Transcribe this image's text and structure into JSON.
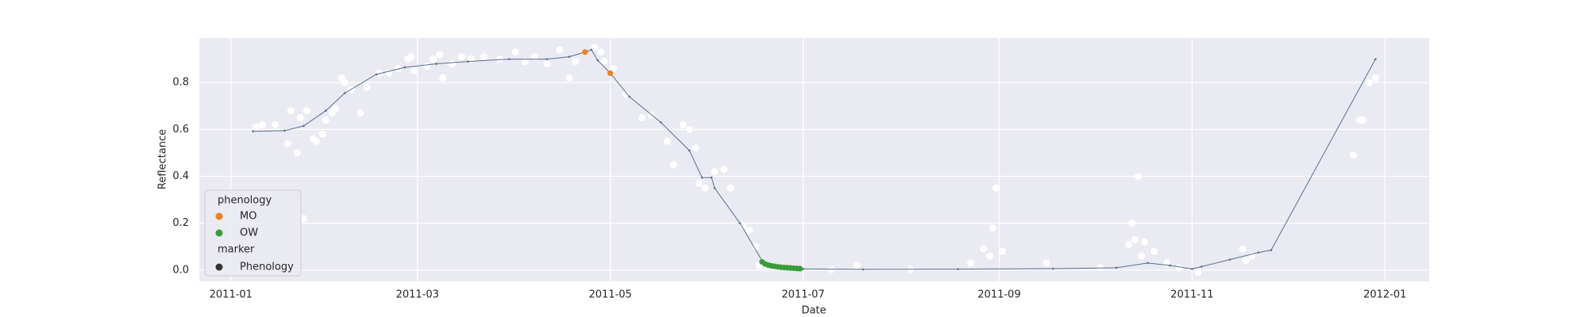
{
  "chart_data": {
    "type": "line",
    "xlabel": "Date",
    "ylabel": "Reflectance",
    "xlim": [
      "2010-12-22",
      "2012-01-15"
    ],
    "xticks": [
      "2011-01",
      "2011-03",
      "2011-05",
      "2011-07",
      "2011-09",
      "2011-11",
      "2012-01"
    ],
    "ylim": [
      -0.048,
      0.99
    ],
    "yticks": [
      {
        "value": 0,
        "label": "0.0"
      },
      0.2,
      0.4,
      0.6,
      0.8
    ],
    "grid": true,
    "line": {
      "color": "#56708f",
      "x": [
        "2011-01-08",
        "2011-01-18",
        "2011-01-24",
        "2011-01-31",
        "2011-02-06",
        "2011-02-16",
        "2011-02-25",
        "2011-03-07",
        "2011-03-17",
        "2011-03-30",
        "2011-04-11",
        "2011-04-18",
        "2011-04-23",
        "2011-04-25",
        "2011-04-27",
        "2011-05-01",
        "2011-05-07",
        "2011-05-17",
        "2011-05-26",
        "2011-05-30",
        "2011-06-02",
        "2011-06-03",
        "2011-06-11",
        "2011-06-18",
        "2011-06-22",
        "2011-07-01",
        "2011-07-20",
        "2011-08-19",
        "2011-09-18",
        "2011-10-08",
        "2011-10-18",
        "2011-10-25",
        "2011-11-01",
        "2011-11-04",
        "2011-11-13",
        "2011-11-22",
        "2011-11-26",
        "2011-12-29"
      ],
      "values": [
        0.592,
        0.595,
        0.615,
        0.68,
        0.755,
        0.835,
        0.865,
        0.88,
        0.89,
        0.9,
        0.9,
        0.91,
        0.93,
        0.94,
        0.895,
        0.84,
        0.74,
        0.63,
        0.51,
        0.395,
        0.395,
        0.35,
        0.2,
        0.04,
        0.015,
        0.005,
        0.003,
        0.004,
        0.006,
        0.01,
        0.03,
        0.02,
        0.005,
        0.015,
        0.045,
        0.075,
        0.085,
        0.9
      ]
    },
    "observations": {
      "color": "#ffffff",
      "x": [
        "2011-01-09",
        "2011-01-11",
        "2011-01-15",
        "2011-01-19",
        "2011-01-20",
        "2011-01-22",
        "2011-01-23",
        "2011-01-24",
        "2011-01-25",
        "2011-01-27",
        "2011-01-28",
        "2011-01-30",
        "2011-01-31",
        "2011-02-02",
        "2011-02-03",
        "2011-02-05",
        "2011-02-06",
        "2011-02-08",
        "2011-02-11",
        "2011-02-13",
        "2011-02-17",
        "2011-02-20",
        "2011-02-23",
        "2011-02-26",
        "2011-02-27",
        "2011-02-28",
        "2011-03-04",
        "2011-03-06",
        "2011-03-08",
        "2011-03-09",
        "2011-03-12",
        "2011-03-15",
        "2011-03-18",
        "2011-03-22",
        "2011-03-27",
        "2011-04-01",
        "2011-04-04",
        "2011-04-07",
        "2011-04-11",
        "2011-04-15",
        "2011-04-18",
        "2011-04-20",
        "2011-04-26",
        "2011-04-28",
        "2011-04-29",
        "2011-05-02",
        "2011-05-06",
        "2011-05-11",
        "2011-05-14",
        "2011-05-19",
        "2011-05-21",
        "2011-05-24",
        "2011-05-26",
        "2011-05-28",
        "2011-05-29",
        "2011-05-31",
        "2011-06-03",
        "2011-06-06",
        "2011-06-08",
        "2011-06-12",
        "2011-06-14",
        "2011-06-16",
        "2011-06-17",
        "2011-06-20",
        "2011-07-10",
        "2011-07-18",
        "2011-08-04",
        "2011-08-23",
        "2011-08-27",
        "2011-08-29",
        "2011-08-30",
        "2011-08-31",
        "2011-09-02",
        "2011-09-16",
        "2011-10-03",
        "2011-10-12",
        "2011-10-13",
        "2011-10-14",
        "2011-10-15",
        "2011-10-16",
        "2011-10-17",
        "2011-10-20",
        "2011-10-24",
        "2011-10-28",
        "2011-11-03",
        "2011-11-17",
        "2011-11-18",
        "2011-11-20",
        "2011-12-22",
        "2011-12-24",
        "2011-12-25",
        "2011-12-27",
        "2011-12-29"
      ],
      "values": [
        0.61,
        0.62,
        0.62,
        0.54,
        0.68,
        0.5,
        0.65,
        0.22,
        0.68,
        0.56,
        0.55,
        0.58,
        0.64,
        0.67,
        0.69,
        0.82,
        0.8,
        0.77,
        0.67,
        0.78,
        0.84,
        0.84,
        0.86,
        0.9,
        0.91,
        0.85,
        0.87,
        0.9,
        0.92,
        0.82,
        0.88,
        0.91,
        0.9,
        0.91,
        0.9,
        0.93,
        0.89,
        0.91,
        0.88,
        0.94,
        0.82,
        0.89,
        0.95,
        0.93,
        0.89,
        0.86,
        0.75,
        0.65,
        0.66,
        0.55,
        0.45,
        0.62,
        0.6,
        0.52,
        0.37,
        0.35,
        0.42,
        0.43,
        0.35,
        0.19,
        0.17,
        0.1,
        0.02,
        0.01,
        0.003,
        0.02,
        0.003,
        0.03,
        0.09,
        0.06,
        0.18,
        0.35,
        0.08,
        0.03,
        0.01,
        0.11,
        0.2,
        0.13,
        0.4,
        0.06,
        0.12,
        0.08,
        0.03,
        0.01,
        -0.01,
        0.09,
        0.04,
        0.06,
        0.49,
        0.64,
        0.64,
        0.8,
        0.82
      ]
    },
    "series": [
      {
        "name": "MO",
        "color": "#f07f1f",
        "x": [
          "2011-04-23",
          "2011-05-01"
        ],
        "values": [
          0.93,
          0.84
        ]
      },
      {
        "name": "OW",
        "color": "#3a9b3a",
        "x": [
          "2011-06-18",
          "2011-06-19",
          "2011-06-20",
          "2011-06-21",
          "2011-06-22",
          "2011-06-23",
          "2011-06-24",
          "2011-06-25",
          "2011-06-26",
          "2011-06-27",
          "2011-06-28",
          "2011-06-29",
          "2011-06-30"
        ],
        "values": [
          0.035,
          0.026,
          0.021,
          0.018,
          0.016,
          0.014,
          0.012,
          0.011,
          0.01,
          0.009,
          0.008,
          0.007,
          0.006
        ]
      }
    ],
    "legend": {
      "loc": "lower left",
      "title": "phenology",
      "marker_title": "marker",
      "marker_label": "Phenology",
      "marker_color": "#333333"
    }
  }
}
